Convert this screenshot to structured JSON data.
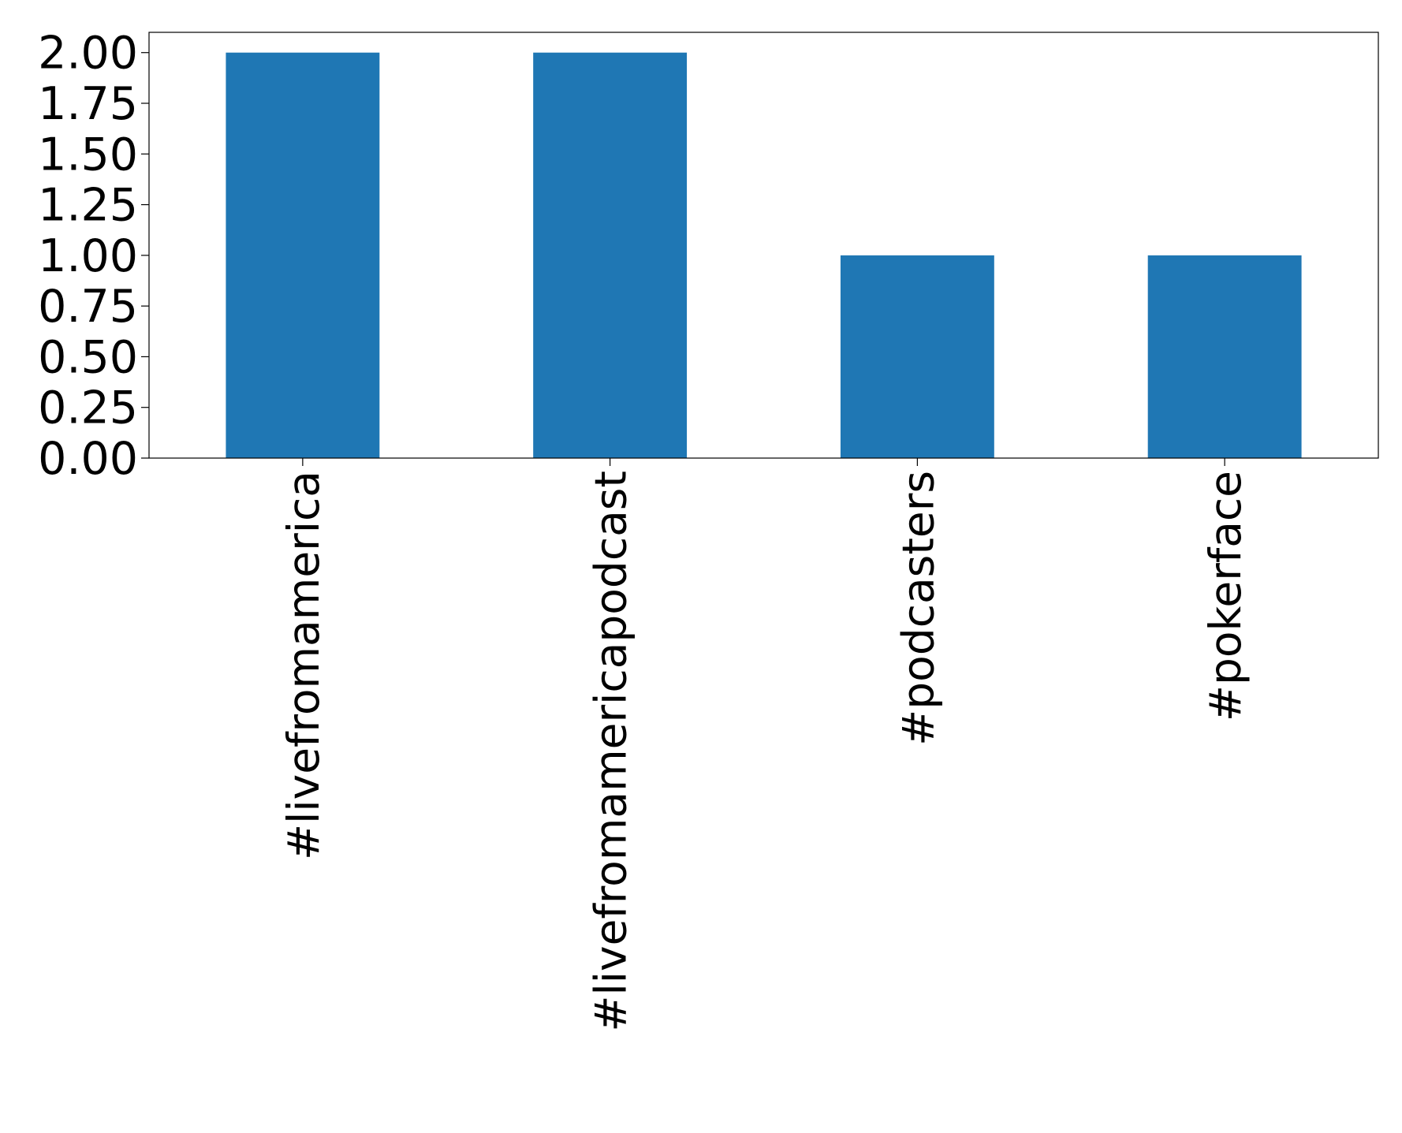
{
  "chart_data": {
    "type": "bar",
    "categories": [
      "#livefromamerica",
      "#livefromamericapodcast",
      "#podcasters",
      "#pokerface"
    ],
    "values": [
      2,
      2,
      1,
      1
    ],
    "color": "#1f77b4",
    "ylim": [
      0,
      2.1
    ],
    "yticks": [
      {
        "value": 0,
        "label": "0.00"
      },
      {
        "value": 0.25,
        "label": "0.25"
      },
      {
        "value": 0.5,
        "label": "0.50"
      },
      {
        "value": 0.75,
        "label": "0.75"
      },
      {
        "value": 1,
        "label": "1.00"
      },
      {
        "value": 1.25,
        "label": "1.25"
      },
      {
        "value": 1.5,
        "label": "1.50"
      },
      {
        "value": 1.75,
        "label": "1.75"
      },
      {
        "value": 2,
        "label": "2.00"
      }
    ],
    "grid": false
  }
}
